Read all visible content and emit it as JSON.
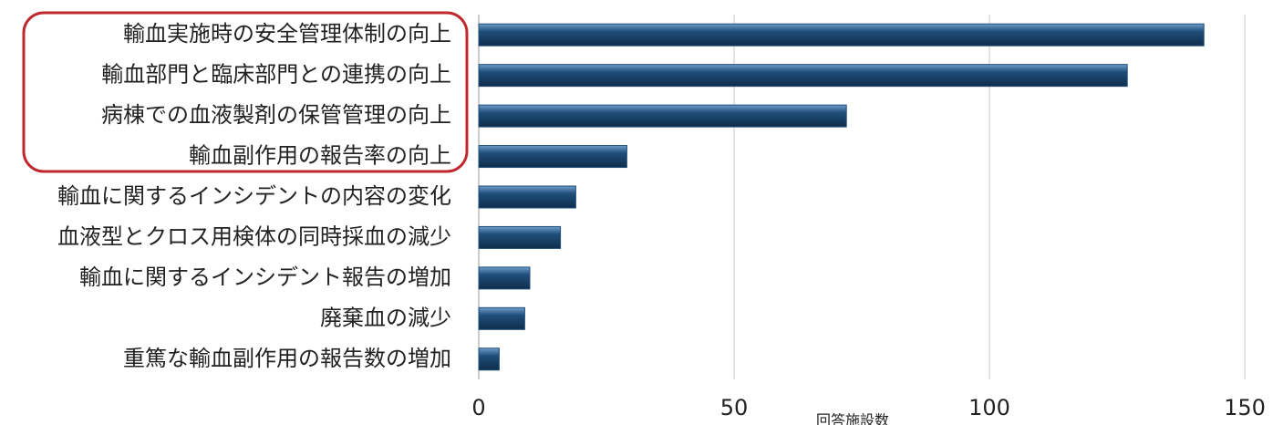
{
  "chart_data": {
    "type": "barh",
    "categories": [
      "輸血実施時の安全管理体制の向上",
      "輸血部門と臨床部門との連携の向上",
      "病棟での血液製剤の保管管理の向上",
      "輸血副作用の報告率の向上",
      "輸血に関するインシデントの内容の変化",
      "血液型とクロス用検体の同時採血の減少",
      "輸血に関するインシデント報告の増加",
      "廃棄血の減少",
      "重篤な輸血副作用の報告数の増加"
    ],
    "values": [
      142,
      127,
      72,
      29,
      19,
      16,
      10,
      9,
      4
    ],
    "color": "#1f4e79",
    "xlim": [
      0,
      150
    ],
    "xticks": [
      0,
      50,
      100,
      150
    ],
    "grid": true,
    "x_label": "回答施設数"
  }
}
